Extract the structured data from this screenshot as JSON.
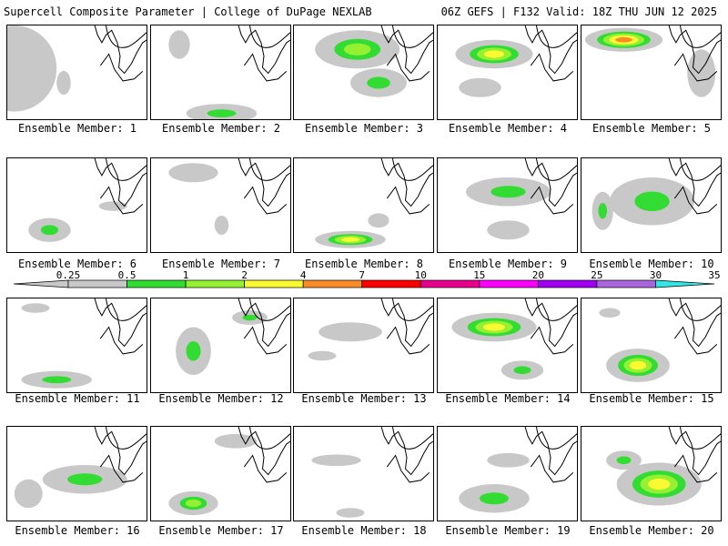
{
  "header": {
    "left": "Supercell Composite Parameter | College of DuPage NEXLAB",
    "right": "06Z GEFS | F132 Valid: 18Z THU JUN 12 2025"
  },
  "colorbar": {
    "labels": [
      "0.25",
      "0.5",
      "1",
      "2",
      "4",
      "7",
      "10",
      "15",
      "20",
      "25",
      "30",
      "35"
    ],
    "colors": [
      "#c8c8c8",
      "#32dc32",
      "#96f032",
      "#fafa32",
      "#fa8c28",
      "#fa0000",
      "#e6008c",
      "#fa00fa",
      "#a000f0",
      "#aa64dc",
      "#32e6e6"
    ]
  },
  "panels": [
    {
      "member": 1,
      "caption": "Ensemble Member: 1",
      "blobs": [
        [
          [
            0.05,
            0.45
          ],
          [
            0.6,
            0.9,
            0.2,
            0.25
          ],
          [
            0.2,
            0.1,
            1
          ]
        ],
        [
          [
            0.4,
            0.6
          ],
          [
            0.1,
            0.25,
            0.12,
            0.1
          ],
          [
            0.1,
            0.5,
            1
          ]
        ]
      ]
    },
    {
      "member": 2,
      "caption": "Ensemble Member: 2",
      "blobs": [
        [
          [
            0.2,
            0.2
          ],
          [
            0.15,
            0.3,
            0.12,
            0.1
          ],
          [
            0.1,
            0.4,
            1
          ]
        ],
        [
          [
            0.5,
            0.92
          ],
          [
            0.5,
            0.2,
            0.2,
            0.08
          ],
          [
            0.1,
            0.5,
            2
          ]
        ]
      ]
    },
    {
      "member": 3,
      "caption": "Ensemble Member: 3",
      "blobs": [
        [
          [
            0.45,
            0.25
          ],
          [
            0.6,
            0.4,
            0.25,
            0.2
          ],
          [
            0.2,
            0.5,
            3
          ]
        ],
        [
          [
            0.6,
            0.6
          ],
          [
            0.4,
            0.3,
            0.2,
            0.15
          ],
          [
            0.1,
            0.4,
            2
          ]
        ]
      ]
    },
    {
      "member": 4,
      "caption": "Ensemble Member: 4",
      "blobs": [
        [
          [
            0.4,
            0.3
          ],
          [
            0.55,
            0.3,
            0.2,
            0.15
          ],
          [
            0.3,
            0.6,
            4
          ]
        ],
        [
          [
            0.3,
            0.65
          ],
          [
            0.3,
            0.2,
            0.15,
            0.1
          ],
          [
            0.1,
            0.4,
            1
          ]
        ]
      ]
    },
    {
      "member": 5,
      "caption": "Ensemble Member: 5",
      "blobs": [
        [
          [
            0.3,
            0.15
          ],
          [
            0.55,
            0.25,
            0.2,
            0.15
          ],
          [
            0.4,
            0.7,
            5
          ]
        ],
        [
          [
            0.85,
            0.5
          ],
          [
            0.2,
            0.5,
            0.1,
            0.3
          ],
          [
            0.1,
            0.4,
            1
          ]
        ]
      ]
    },
    {
      "member": 6,
      "caption": "Ensemble Member: 6",
      "blobs": [
        [
          [
            0.3,
            0.75
          ],
          [
            0.3,
            0.25,
            0.15,
            0.1
          ],
          [
            0.1,
            0.4,
            2
          ]
        ],
        [
          [
            0.75,
            0.5
          ],
          [
            0.2,
            0.1,
            0.1,
            0.06
          ],
          [
            0.1,
            0.4,
            1
          ]
        ]
      ]
    },
    {
      "member": 7,
      "caption": "Ensemble Member: 7",
      "blobs": [
        [
          [
            0.3,
            0.15
          ],
          [
            0.35,
            0.2,
            0.2,
            0.1
          ],
          [
            0.1,
            0.4,
            1
          ]
        ],
        [
          [
            0.5,
            0.7
          ],
          [
            0.1,
            0.2,
            0.05,
            0.1
          ],
          [
            0.0,
            0.3,
            0
          ]
        ]
      ]
    },
    {
      "member": 8,
      "caption": "Ensemble Member: 8",
      "blobs": [
        [
          [
            0.4,
            0.85
          ],
          [
            0.5,
            0.18,
            0.3,
            0.1
          ],
          [
            0.2,
            0.5,
            4
          ]
        ],
        [
          [
            0.6,
            0.65
          ],
          [
            0.15,
            0.15,
            0.1,
            0.1
          ],
          [
            0.1,
            0.4,
            1
          ]
        ]
      ]
    },
    {
      "member": 9,
      "caption": "Ensemble Member: 9",
      "blobs": [
        [
          [
            0.5,
            0.35
          ],
          [
            0.6,
            0.3,
            0.4,
            0.2
          ],
          [
            0.2,
            0.5,
            2
          ]
        ],
        [
          [
            0.5,
            0.75
          ],
          [
            0.3,
            0.2,
            0.15,
            0.1
          ],
          [
            0.1,
            0.4,
            1
          ]
        ]
      ]
    },
    {
      "member": 10,
      "caption": "Ensemble Member: 10",
      "blobs": [
        [
          [
            0.5,
            0.45
          ],
          [
            0.6,
            0.5,
            0.4,
            0.3
          ],
          [
            0.2,
            0.5,
            2
          ]
        ],
        [
          [
            0.15,
            0.55
          ],
          [
            0.15,
            0.4,
            0.1,
            0.3
          ],
          [
            0.1,
            0.4,
            2
          ]
        ]
      ]
    },
    {
      "member": 11,
      "caption": "Ensemble Member: 11",
      "blobs": [
        [
          [
            0.35,
            0.85
          ],
          [
            0.5,
            0.18,
            0.3,
            0.1
          ],
          [
            0.2,
            0.5,
            2
          ]
        ],
        [
          [
            0.2,
            0.1
          ],
          [
            0.2,
            0.1,
            0.1,
            0.05
          ],
          [
            0.1,
            0.3,
            0
          ]
        ]
      ]
    },
    {
      "member": 12,
      "caption": "Ensemble Member: 12",
      "blobs": [
        [
          [
            0.3,
            0.55
          ],
          [
            0.25,
            0.5,
            0.15,
            0.3
          ],
          [
            0.2,
            0.5,
            2
          ]
        ],
        [
          [
            0.7,
            0.2
          ],
          [
            0.25,
            0.15,
            0.15,
            0.1
          ],
          [
            0.1,
            0.4,
            2
          ]
        ]
      ]
    },
    {
      "member": 13,
      "caption": "Ensemble Member: 13",
      "blobs": [
        [
          [
            0.4,
            0.35
          ],
          [
            0.45,
            0.2,
            0.3,
            0.1
          ],
          [
            0.1,
            0.4,
            1
          ]
        ],
        [
          [
            0.2,
            0.6
          ],
          [
            0.2,
            0.1,
            0.1,
            0.06
          ],
          [
            0.1,
            0.4,
            1
          ]
        ]
      ]
    },
    {
      "member": 14,
      "caption": "Ensemble Member: 14",
      "blobs": [
        [
          [
            0.4,
            0.3
          ],
          [
            0.6,
            0.3,
            0.4,
            0.15
          ],
          [
            0.3,
            0.6,
            4
          ]
        ],
        [
          [
            0.6,
            0.75
          ],
          [
            0.3,
            0.2,
            0.15,
            0.1
          ],
          [
            0.1,
            0.4,
            2
          ]
        ]
      ]
    },
    {
      "member": 15,
      "caption": "Ensemble Member: 15",
      "blobs": [
        [
          [
            0.4,
            0.7
          ],
          [
            0.45,
            0.35,
            0.3,
            0.2
          ],
          [
            0.2,
            0.5,
            4
          ]
        ],
        [
          [
            0.2,
            0.15
          ],
          [
            0.15,
            0.1,
            0.1,
            0.05
          ],
          [
            0.1,
            0.3,
            0
          ]
        ]
      ]
    },
    {
      "member": 16,
      "caption": "Ensemble Member: 16",
      "blobs": [
        [
          [
            0.55,
            0.55
          ],
          [
            0.6,
            0.3,
            0.4,
            0.2
          ],
          [
            0.2,
            0.5,
            2
          ]
        ],
        [
          [
            0.15,
            0.7
          ],
          [
            0.2,
            0.3,
            0.1,
            0.2
          ],
          [
            0.1,
            0.4,
            1
          ]
        ]
      ]
    },
    {
      "member": 17,
      "caption": "Ensemble Member: 17",
      "blobs": [
        [
          [
            0.3,
            0.8
          ],
          [
            0.35,
            0.25,
            0.2,
            0.15
          ],
          [
            0.3,
            0.6,
            3
          ]
        ],
        [
          [
            0.6,
            0.15
          ],
          [
            0.3,
            0.15,
            0.2,
            0.1
          ],
          [
            0.1,
            0.4,
            1
          ]
        ]
      ]
    },
    {
      "member": 18,
      "caption": "Ensemble Member: 18",
      "blobs": [
        [
          [
            0.3,
            0.35
          ],
          [
            0.35,
            0.12,
            0.2,
            0.08
          ],
          [
            0.1,
            0.3,
            1
          ]
        ],
        [
          [
            0.4,
            0.9
          ],
          [
            0.2,
            0.1,
            0.1,
            0.05
          ],
          [
            0.1,
            0.4,
            1
          ]
        ]
      ]
    },
    {
      "member": 19,
      "caption": "Ensemble Member: 19",
      "blobs": [
        [
          [
            0.4,
            0.75
          ],
          [
            0.5,
            0.3,
            0.3,
            0.2
          ],
          [
            0.1,
            0.4,
            2
          ]
        ],
        [
          [
            0.5,
            0.35
          ],
          [
            0.3,
            0.15,
            0.15,
            0.1
          ],
          [
            0.1,
            0.4,
            1
          ]
        ]
      ]
    },
    {
      "member": 20,
      "caption": "Ensemble Member: 20",
      "blobs": [
        [
          [
            0.55,
            0.6
          ],
          [
            0.6,
            0.45,
            0.4,
            0.3
          ],
          [
            0.2,
            0.5,
            4
          ]
        ],
        [
          [
            0.3,
            0.35
          ],
          [
            0.25,
            0.2,
            0.15,
            0.1
          ],
          [
            0.1,
            0.4,
            2
          ]
        ]
      ]
    }
  ]
}
